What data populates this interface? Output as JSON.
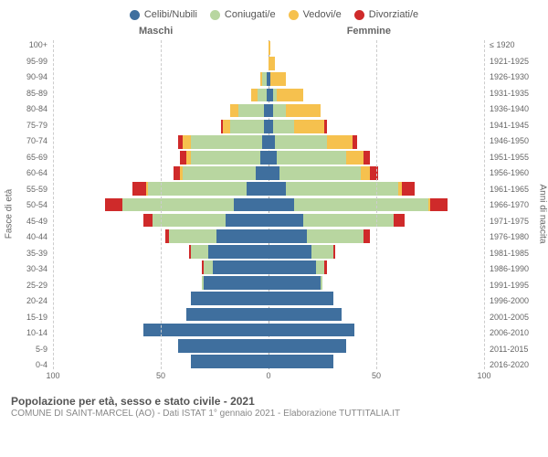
{
  "legend": [
    {
      "label": "Celibi/Nubili",
      "color": "#3f6f9e"
    },
    {
      "label": "Coniugati/e",
      "color": "#b8d6a0"
    },
    {
      "label": "Vedovi/e",
      "color": "#f6c14e"
    },
    {
      "label": "Divorziati/e",
      "color": "#cf2a2a"
    }
  ],
  "gender": {
    "male": "Maschi",
    "female": "Femmine"
  },
  "axes": {
    "left_title": "Fasce di età",
    "right_title": "Anni di nascita",
    "left_labels": [
      "100+",
      "95-99",
      "90-94",
      "85-89",
      "80-84",
      "75-79",
      "70-74",
      "65-69",
      "60-64",
      "55-59",
      "50-54",
      "45-49",
      "40-44",
      "35-39",
      "30-34",
      "25-29",
      "20-24",
      "15-19",
      "10-14",
      "5-9",
      "0-4"
    ],
    "right_labels": [
      "≤ 1920",
      "1921-1925",
      "1926-1930",
      "1931-1935",
      "1936-1940",
      "1941-1945",
      "1946-1950",
      "1951-1955",
      "1956-1960",
      "1961-1965",
      "1966-1970",
      "1971-1975",
      "1976-1980",
      "1981-1985",
      "1986-1990",
      "1991-1995",
      "1996-2000",
      "2001-2005",
      "2006-2010",
      "2011-2015",
      "2016-2020"
    ],
    "x_ticks": [
      100,
      50,
      0,
      50,
      100
    ],
    "x_max": 100
  },
  "colors": {
    "celibi": "#3f6f9e",
    "coniugati": "#b8d6a0",
    "vedovi": "#f6c14e",
    "divorziati": "#cf2a2a",
    "grid": "#cccccc",
    "center": "#aaaaaa",
    "bg": "#ffffff"
  },
  "data": {
    "male": [
      {
        "c": 0,
        "m": 0,
        "w": 0,
        "d": 0
      },
      {
        "c": 0,
        "m": 0,
        "w": 0,
        "d": 0
      },
      {
        "c": 1,
        "m": 2,
        "w": 1,
        "d": 0
      },
      {
        "c": 1,
        "m": 4,
        "w": 3,
        "d": 0
      },
      {
        "c": 2,
        "m": 12,
        "w": 4,
        "d": 0
      },
      {
        "c": 2,
        "m": 16,
        "w": 3,
        "d": 1
      },
      {
        "c": 3,
        "m": 33,
        "w": 4,
        "d": 2
      },
      {
        "c": 4,
        "m": 32,
        "w": 2,
        "d": 3
      },
      {
        "c": 6,
        "m": 34,
        "w": 1,
        "d": 3
      },
      {
        "c": 10,
        "m": 46,
        "w": 1,
        "d": 6
      },
      {
        "c": 16,
        "m": 52,
        "w": 0,
        "d": 8
      },
      {
        "c": 20,
        "m": 34,
        "w": 0,
        "d": 4
      },
      {
        "c": 24,
        "m": 22,
        "w": 0,
        "d": 2
      },
      {
        "c": 28,
        "m": 8,
        "w": 0,
        "d": 1
      },
      {
        "c": 26,
        "m": 4,
        "w": 0,
        "d": 1
      },
      {
        "c": 30,
        "m": 1,
        "w": 0,
        "d": 0
      },
      {
        "c": 36,
        "m": 0,
        "w": 0,
        "d": 0
      },
      {
        "c": 38,
        "m": 0,
        "w": 0,
        "d": 0
      },
      {
        "c": 58,
        "m": 0,
        "w": 0,
        "d": 0
      },
      {
        "c": 42,
        "m": 0,
        "w": 0,
        "d": 0
      },
      {
        "c": 36,
        "m": 0,
        "w": 0,
        "d": 0
      }
    ],
    "female": [
      {
        "c": 0,
        "m": 0,
        "w": 1,
        "d": 0
      },
      {
        "c": 0,
        "m": 0,
        "w": 3,
        "d": 0
      },
      {
        "c": 1,
        "m": 0,
        "w": 7,
        "d": 0
      },
      {
        "c": 2,
        "m": 2,
        "w": 12,
        "d": 0
      },
      {
        "c": 2,
        "m": 6,
        "w": 16,
        "d": 0
      },
      {
        "c": 2,
        "m": 10,
        "w": 14,
        "d": 1
      },
      {
        "c": 3,
        "m": 24,
        "w": 12,
        "d": 2
      },
      {
        "c": 4,
        "m": 32,
        "w": 8,
        "d": 3
      },
      {
        "c": 5,
        "m": 38,
        "w": 4,
        "d": 4
      },
      {
        "c": 8,
        "m": 52,
        "w": 2,
        "d": 6
      },
      {
        "c": 12,
        "m": 62,
        "w": 1,
        "d": 8
      },
      {
        "c": 16,
        "m": 42,
        "w": 0,
        "d": 5
      },
      {
        "c": 18,
        "m": 26,
        "w": 0,
        "d": 3
      },
      {
        "c": 20,
        "m": 10,
        "w": 0,
        "d": 1
      },
      {
        "c": 22,
        "m": 4,
        "w": 0,
        "d": 1
      },
      {
        "c": 24,
        "m": 1,
        "w": 0,
        "d": 0
      },
      {
        "c": 30,
        "m": 0,
        "w": 0,
        "d": 0
      },
      {
        "c": 34,
        "m": 0,
        "w": 0,
        "d": 0
      },
      {
        "c": 40,
        "m": 0,
        "w": 0,
        "d": 0
      },
      {
        "c": 36,
        "m": 0,
        "w": 0,
        "d": 0
      },
      {
        "c": 30,
        "m": 0,
        "w": 0,
        "d": 0
      }
    ]
  },
  "footer": {
    "line1": "Popolazione per età, sesso e stato civile - 2021",
    "line2": "COMUNE DI SAINT-MARCEL (AO) - Dati ISTAT 1° gennaio 2021 - Elaborazione TUTTITALIA.IT"
  },
  "style": {
    "font": "Arial",
    "row_count": 21
  }
}
